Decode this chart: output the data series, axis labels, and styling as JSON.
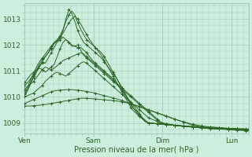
{
  "title": "",
  "xlabel": "Pression niveau de la mer( hPa )",
  "ylabel": "",
  "bg_color": "#cceedd",
  "grid_color": "#aaccbb",
  "line_color": "#2d6628",
  "x_ticks": [
    0,
    24,
    48,
    72
  ],
  "x_tick_labels": [
    "Ven",
    "Sam",
    "Dim",
    "Lun"
  ],
  "ylim": [
    1008.6,
    1013.6
  ],
  "y_ticks": [
    1009,
    1010,
    1011,
    1012,
    1013
  ],
  "xlim": [
    0,
    78
  ],
  "series": [
    [
      1009.65,
      1009.65,
      1009.65,
      1009.66,
      1009.67,
      1009.68,
      1009.7,
      1009.71,
      1009.73,
      1009.75,
      1009.77,
      1009.79,
      1009.81,
      1009.83,
      1009.85,
      1009.87,
      1009.89,
      1009.91,
      1009.93,
      1009.95,
      1009.95,
      1009.95,
      1009.94,
      1009.93,
      1009.92,
      1009.91,
      1009.9,
      1009.89,
      1009.88,
      1009.87,
      1009.86,
      1009.85,
      1009.83,
      1009.81,
      1009.79,
      1009.76,
      1009.73,
      1009.7,
      1009.67,
      1009.63,
      1009.59,
      1009.55,
      1009.51,
      1009.47,
      1009.43,
      1009.39,
      1009.35,
      1009.31,
      1009.27,
      1009.23,
      1009.19,
      1009.15,
      1009.11,
      1009.07,
      1009.03,
      1008.99,
      1008.95,
      1008.92,
      1008.9,
      1008.87,
      1008.85,
      1008.83,
      1008.82,
      1008.81,
      1008.8,
      1008.79,
      1008.78,
      1008.77,
      1008.76,
      1008.75,
      1008.74,
      1008.73,
      1008.72,
      1008.72,
      1008.71,
      1008.7,
      1008.7
    ],
    [
      1009.75,
      1009.8,
      1009.85,
      1009.9,
      1009.95,
      1010.0,
      1010.05,
      1010.1,
      1010.15,
      1010.2,
      1010.23,
      1010.25,
      1010.26,
      1010.27,
      1010.28,
      1010.28,
      1010.28,
      1010.27,
      1010.26,
      1010.25,
      1010.23,
      1010.21,
      1010.19,
      1010.17,
      1010.14,
      1010.11,
      1010.08,
      1010.05,
      1010.02,
      1009.99,
      1009.96,
      1009.93,
      1009.9,
      1009.86,
      1009.82,
      1009.78,
      1009.74,
      1009.7,
      1009.66,
      1009.62,
      1009.58,
      1009.54,
      1009.5,
      1009.46,
      1009.42,
      1009.38,
      1009.34,
      1009.3,
      1009.26,
      1009.22,
      1009.18,
      1009.14,
      1009.1,
      1009.07,
      1009.04,
      1009.01,
      1008.98,
      1008.95,
      1008.93,
      1008.91,
      1008.89,
      1008.87,
      1008.86,
      1008.85,
      1008.84,
      1008.83,
      1008.82,
      1008.81,
      1008.8,
      1008.79,
      1008.78,
      1008.77,
      1008.77,
      1008.76,
      1008.76,
      1008.75,
      1008.75
    ],
    [
      1010.0,
      1010.05,
      1010.1,
      1010.15,
      1010.25,
      1010.35,
      1010.45,
      1010.6,
      1010.7,
      1010.8,
      1010.9,
      1010.95,
      1010.9,
      1010.85,
      1010.8,
      1010.9,
      1011.0,
      1011.1,
      1011.2,
      1011.3,
      1011.35,
      1011.3,
      1011.2,
      1011.1,
      1011.0,
      1010.9,
      1010.8,
      1010.7,
      1010.6,
      1010.5,
      1010.4,
      1010.3,
      1010.2,
      1010.1,
      1010.0,
      1009.9,
      1009.8,
      1009.7,
      1009.6,
      1009.5,
      1009.4,
      1009.3,
      1009.2,
      1009.15,
      1009.1,
      1009.05,
      1009.0,
      1008.98,
      1008.96,
      1008.94,
      1008.92,
      1008.9,
      1008.89,
      1008.88,
      1008.87,
      1008.86,
      1008.85,
      1008.84,
      1008.83,
      1008.82,
      1008.81,
      1008.8,
      1008.79,
      1008.78,
      1008.78,
      1008.77,
      1008.77,
      1008.76,
      1008.76,
      1008.75,
      1008.75,
      1008.75,
      1008.74,
      1008.74,
      1008.74,
      1008.73,
      1008.73
    ],
    [
      1010.3,
      1010.4,
      1010.5,
      1010.6,
      1010.75,
      1010.9,
      1011.05,
      1011.15,
      1011.1,
      1011.05,
      1011.1,
      1011.2,
      1011.3,
      1011.4,
      1011.45,
      1011.5,
      1011.55,
      1011.6,
      1011.65,
      1011.7,
      1011.65,
      1011.55,
      1011.45,
      1011.35,
      1011.25,
      1011.15,
      1011.05,
      1010.95,
      1010.85,
      1010.75,
      1010.65,
      1010.55,
      1010.45,
      1010.35,
      1010.25,
      1010.15,
      1010.05,
      1009.95,
      1009.85,
      1009.75,
      1009.65,
      1009.55,
      1009.45,
      1009.35,
      1009.25,
      1009.15,
      1009.05,
      1008.99,
      1008.97,
      1008.95,
      1008.93,
      1008.91,
      1008.9,
      1008.89,
      1008.88,
      1008.87,
      1008.86,
      1008.85,
      1008.84,
      1008.83,
      1008.82,
      1008.81,
      1008.8,
      1008.79,
      1008.79,
      1008.78,
      1008.78,
      1008.77,
      1008.77,
      1008.76,
      1008.76,
      1008.75,
      1008.75,
      1008.74,
      1008.74,
      1008.73,
      1008.73
    ],
    [
      1010.55,
      1010.7,
      1010.85,
      1010.95,
      1011.05,
      1011.1,
      1011.05,
      1010.95,
      1011.05,
      1011.15,
      1011.25,
      1011.55,
      1011.85,
      1012.1,
      1012.2,
      1012.1,
      1011.95,
      1011.95,
      1012.0,
      1011.8,
      1011.6,
      1011.5,
      1011.4,
      1011.3,
      1011.2,
      1011.1,
      1011.0,
      1010.9,
      1010.8,
      1010.7,
      1010.6,
      1010.5,
      1010.4,
      1010.3,
      1010.2,
      1010.1,
      1010.0,
      1009.9,
      1009.8,
      1009.7,
      1009.6,
      1009.5,
      1009.4,
      1009.3,
      1009.2,
      1009.1,
      1009.0,
      1008.99,
      1008.97,
      1008.95,
      1008.93,
      1008.91,
      1008.89,
      1008.88,
      1008.87,
      1008.86,
      1008.85,
      1008.84,
      1008.83,
      1008.82,
      1008.81,
      1008.8,
      1008.79,
      1008.78,
      1008.78,
      1008.77,
      1008.77,
      1008.76,
      1008.76,
      1008.75,
      1008.75,
      1008.74,
      1008.74,
      1008.74,
      1008.73,
      1008.73,
      1008.72
    ],
    [
      1010.45,
      1010.55,
      1010.7,
      1010.85,
      1011.0,
      1011.2,
      1011.3,
      1011.3,
      1011.5,
      1011.7,
      1011.9,
      1012.1,
      1012.2,
      1012.3,
      1012.2,
      1012.1,
      1012.0,
      1011.95,
      1011.9,
      1011.9,
      1011.8,
      1011.7,
      1011.55,
      1011.4,
      1011.3,
      1011.2,
      1011.1,
      1011.0,
      1010.9,
      1010.8,
      1010.7,
      1010.55,
      1010.4,
      1010.25,
      1010.1,
      1009.95,
      1009.8,
      1009.65,
      1009.5,
      1009.35,
      1009.2,
      1009.1,
      1009.0,
      1008.99,
      1008.98,
      1008.97,
      1008.96,
      1008.95,
      1008.94,
      1008.93,
      1008.92,
      1008.91,
      1008.9,
      1008.89,
      1008.88,
      1008.87,
      1008.86,
      1008.85,
      1008.84,
      1008.84,
      1008.83,
      1008.82,
      1008.82,
      1008.81,
      1008.8,
      1008.8,
      1008.79,
      1008.79,
      1008.78,
      1008.78,
      1008.77,
      1008.77,
      1008.76,
      1008.76,
      1008.75,
      1008.75,
      1008.74
    ],
    [
      1010.1,
      1010.3,
      1010.55,
      1010.8,
      1011.05,
      1011.25,
      1011.45,
      1011.55,
      1011.7,
      1011.9,
      1012.05,
      1012.15,
      1012.25,
      1012.55,
      1013.0,
      1013.35,
      1013.2,
      1012.9,
      1012.55,
      1012.3,
      1012.1,
      1012.0,
      1011.9,
      1011.8,
      1011.7,
      1011.6,
      1011.5,
      1011.35,
      1011.2,
      1011.05,
      1010.9,
      1010.75,
      1010.55,
      1010.35,
      1010.15,
      1009.95,
      1009.75,
      1009.55,
      1009.45,
      1009.3,
      1009.15,
      1009.05,
      1009.0,
      1008.99,
      1008.98,
      1008.97,
      1008.96,
      1008.95,
      1008.94,
      1008.93,
      1008.92,
      1008.91,
      1008.9,
      1008.89,
      1008.88,
      1008.87,
      1008.86,
      1008.85,
      1008.85,
      1008.84,
      1008.83,
      1008.83,
      1008.82,
      1008.81,
      1008.81,
      1008.8,
      1008.8,
      1008.79,
      1008.79,
      1008.78,
      1008.78,
      1008.77,
      1008.77,
      1008.76,
      1008.76,
      1008.76,
      1008.75
    ],
    [
      1010.15,
      1010.4,
      1010.65,
      1010.9,
      1011.15,
      1011.35,
      1011.5,
      1011.65,
      1011.8,
      1011.95,
      1012.1,
      1012.2,
      1012.35,
      1012.6,
      1012.9,
      1013.15,
      1013.3,
      1013.15,
      1012.85,
      1012.6,
      1012.4,
      1012.2,
      1012.1,
      1012.0,
      1011.9,
      1011.8,
      1011.7,
      1011.55,
      1011.35,
      1011.15,
      1010.95,
      1010.75,
      1010.55,
      1010.35,
      1010.1,
      1009.9,
      1009.7,
      1009.55,
      1009.4,
      1009.25,
      1009.15,
      1009.05,
      1009.0,
      1008.99,
      1008.98,
      1008.97,
      1008.96,
      1008.95,
      1008.94,
      1008.93,
      1008.92,
      1008.91,
      1008.9,
      1008.89,
      1008.88,
      1008.87,
      1008.86,
      1008.86,
      1008.85,
      1008.84,
      1008.84,
      1008.83,
      1008.82,
      1008.82,
      1008.81,
      1008.81,
      1008.8,
      1008.8,
      1008.79,
      1008.79,
      1008.78,
      1008.78,
      1008.77,
      1008.77,
      1008.77,
      1008.76,
      1008.76
    ],
    [
      1010.05,
      1010.25,
      1010.5,
      1010.75,
      1010.95,
      1011.15,
      1011.35,
      1011.55,
      1011.7,
      1011.85,
      1012.05,
      1012.15,
      1012.3,
      1012.45,
      1012.65,
      1012.85,
      1013.0,
      1013.1,
      1013.0,
      1012.8,
      1012.6,
      1012.4,
      1012.2,
      1012.05,
      1011.9,
      1011.75,
      1011.6,
      1011.4,
      1011.2,
      1011.0,
      1010.8,
      1010.6,
      1010.4,
      1010.2,
      1010.0,
      1009.8,
      1009.6,
      1009.45,
      1009.35,
      1009.25,
      1009.15,
      1009.05,
      1009.0,
      1008.99,
      1008.98,
      1008.97,
      1008.96,
      1008.95,
      1008.94,
      1008.93,
      1008.92,
      1008.91,
      1008.9,
      1008.89,
      1008.89,
      1008.88,
      1008.87,
      1008.87,
      1008.86,
      1008.85,
      1008.85,
      1008.84,
      1008.83,
      1008.83,
      1008.82,
      1008.82,
      1008.81,
      1008.81,
      1008.8,
      1008.8,
      1008.79,
      1008.79,
      1008.78,
      1008.78,
      1008.78,
      1008.77,
      1008.77
    ]
  ]
}
